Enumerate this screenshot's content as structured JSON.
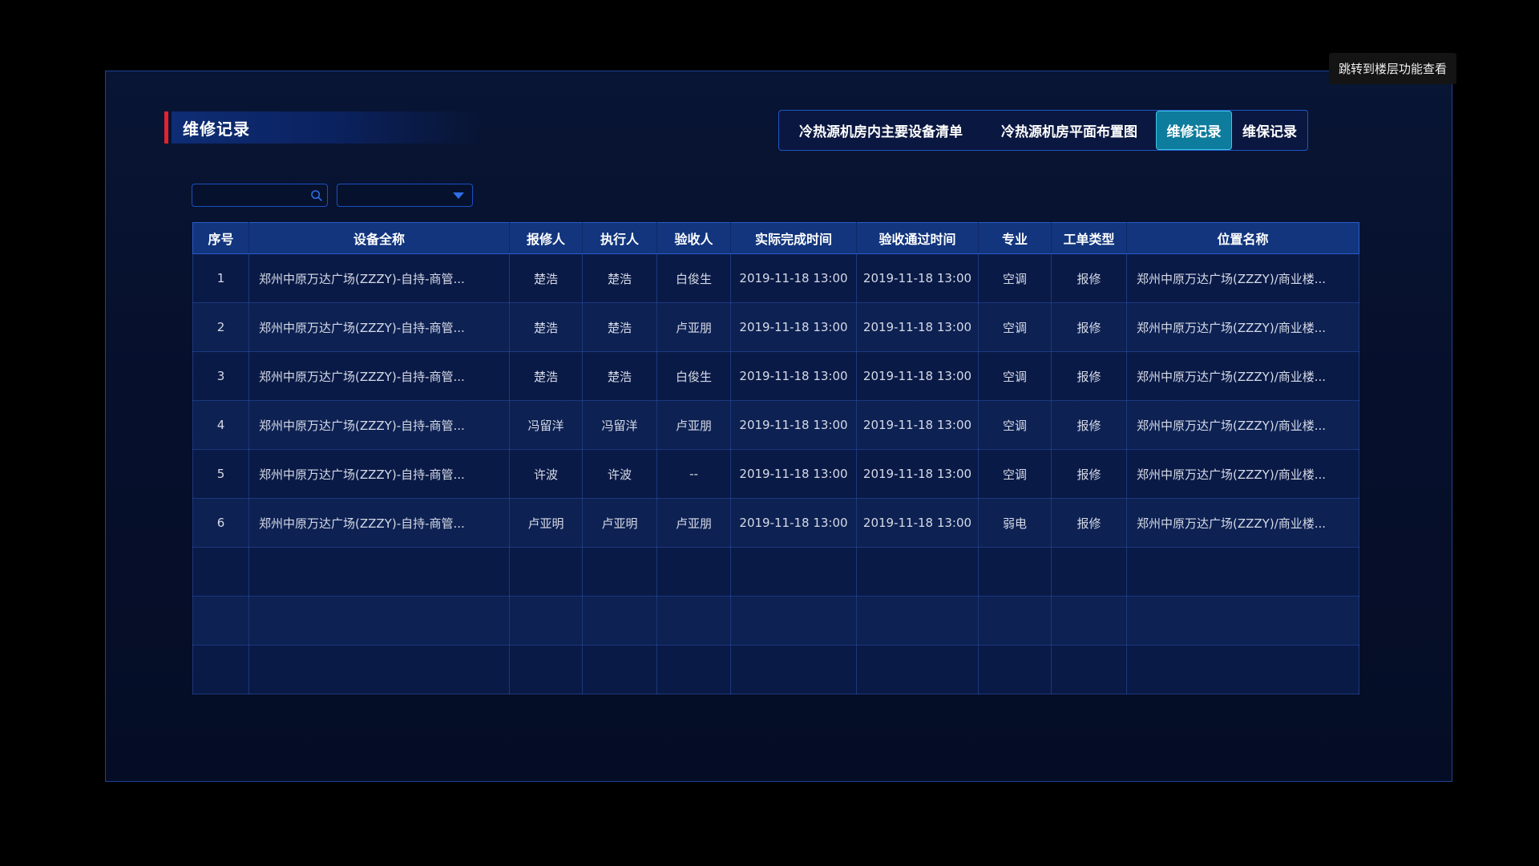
{
  "header": {
    "title": "维修记录",
    "tooltip": "跳转到楼层功能查看",
    "tabs": [
      {
        "label": "冷热源机房内主要设备清单",
        "active": false
      },
      {
        "label": "冷热源机房平面布置图",
        "active": false
      },
      {
        "label": "维修记录",
        "active": true
      },
      {
        "label": "维保记录",
        "active": false
      }
    ]
  },
  "actions": {
    "share_icon": "jump-to-floor-share-arrow",
    "close_icon": "close-x"
  },
  "filters": {
    "search_value": "",
    "search_placeholder": "",
    "search_icon": "magnifier",
    "dropdown_value": "",
    "dropdown_icon": "caret-down"
  },
  "table": {
    "columns": [
      "序号",
      "设备全称",
      "报修人",
      "执行人",
      "验收人",
      "实际完成时间",
      "验收通过时间",
      "专业",
      "工单类型",
      "位置名称"
    ],
    "rows": [
      [
        "1",
        "郑州中原万达广场(ZZZY)-自持-商管...",
        "楚浩",
        "楚浩",
        "白俊生",
        "2019-11-18 13:00",
        "2019-11-18 13:00",
        "空调",
        "报修",
        "郑州中原万达广场(ZZZY)/商业楼..."
      ],
      [
        "2",
        "郑州中原万达广场(ZZZY)-自持-商管...",
        "楚浩",
        "楚浩",
        "卢亚朋",
        "2019-11-18 13:00",
        "2019-11-18 13:00",
        "空调",
        "报修",
        "郑州中原万达广场(ZZZY)/商业楼..."
      ],
      [
        "3",
        "郑州中原万达广场(ZZZY)-自持-商管...",
        "楚浩",
        "楚浩",
        "白俊生",
        "2019-11-18 13:00",
        "2019-11-18 13:00",
        "空调",
        "报修",
        "郑州中原万达广场(ZZZY)/商业楼..."
      ],
      [
        "4",
        "郑州中原万达广场(ZZZY)-自持-商管...",
        "冯留洋",
        "冯留洋",
        "卢亚朋",
        "2019-11-18 13:00",
        "2019-11-18 13:00",
        "空调",
        "报修",
        "郑州中原万达广场(ZZZY)/商业楼..."
      ],
      [
        "5",
        "郑州中原万达广场(ZZZY)-自持-商管...",
        "许波",
        "许波",
        "--",
        "2019-11-18 13:00",
        "2019-11-18 13:00",
        "空调",
        "报修",
        "郑州中原万达广场(ZZZY)/商业楼..."
      ],
      [
        "6",
        "郑州中原万达广场(ZZZY)-自持-商管...",
        "卢亚明",
        "卢亚明",
        "卢亚朋",
        "2019-11-18 13:00",
        "2019-11-18 13:00",
        "弱电",
        "报修",
        "郑州中原万达广场(ZZZY)/商业楼..."
      ]
    ],
    "empty_row_count": 3
  },
  "colors": {
    "accent_red": "#e1232d",
    "panel_border_blue": "#1e4292",
    "active_tab_teal": "#0e7c9c",
    "share_button_blue": "#1473b9",
    "close_button_red": "#d9232b",
    "header_row_blue": "#12357d"
  }
}
